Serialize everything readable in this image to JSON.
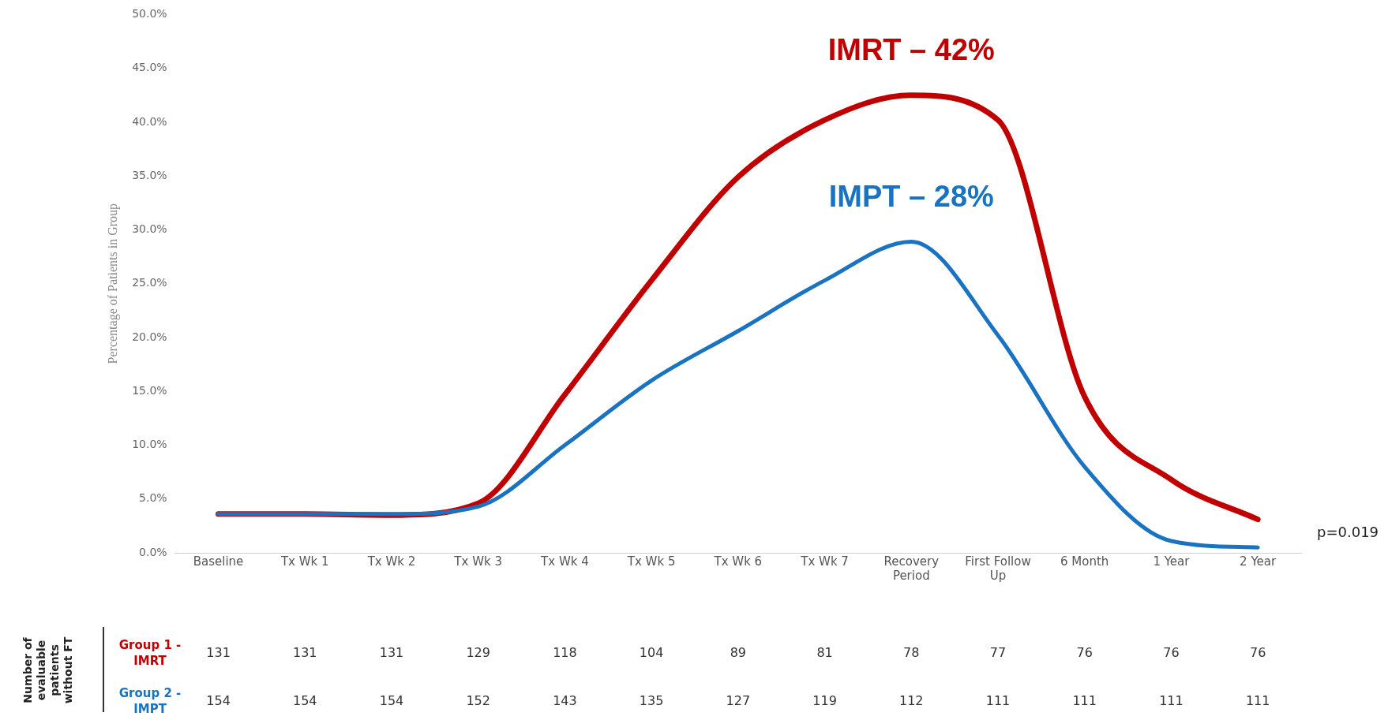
{
  "chart_data": {
    "type": "line",
    "ylabel": "Percentage of Patients in Group",
    "categories": [
      "Baseline",
      "Tx Wk 1",
      "Tx Wk 2",
      "Tx Wk 3",
      "Tx Wk 4",
      "Tx Wk 5",
      "Tx Wk 6",
      "Tx Wk 7",
      "Recovery Period",
      "First Follow Up",
      "6 Month",
      "1 Year",
      "2 Year"
    ],
    "series": [
      {
        "color": "#c00000",
        "values": [
          3.6,
          3.6,
          3.5,
          4.6,
          14.7,
          25.3,
          34.9,
          40.2,
          42.5,
          40.2,
          14.5,
          6.8,
          3.1
        ]
      },
      {
        "color": "#1a73c0",
        "values": [
          3.6,
          3.6,
          3.6,
          4.3,
          10.0,
          16.0,
          20.6,
          25.3,
          28.9,
          20.2,
          8.0,
          1.1,
          0.5
        ]
      }
    ],
    "ylim": [
      0,
      50
    ],
    "yticks": [
      {
        "value": 0,
        "label": "0.0%"
      },
      {
        "value": 5,
        "label": "5.0%"
      },
      {
        "value": 10,
        "label": "10.0%"
      },
      {
        "value": 15,
        "label": "15.0%"
      },
      {
        "value": 20,
        "label": "20.0%"
      },
      {
        "value": 25,
        "label": "25.0%"
      },
      {
        "value": 30,
        "label": "30.0%"
      },
      {
        "value": 35,
        "label": "35.0%"
      },
      {
        "value": 40,
        "label": "40.0%"
      },
      {
        "value": 45,
        "label": "45.0%"
      },
      {
        "value": 50,
        "label": "50.0%"
      }
    ],
    "grid": false,
    "legend": false,
    "marker": "none",
    "line_style": "solid",
    "annotations": [
      "Number of evaluable patients without FT",
      "Group 1 - IMRT",
      "131",
      "131",
      "131",
      "129",
      "118",
      "104",
      "89",
      "81",
      "78",
      "77",
      "76",
      "76",
      "76",
      "Group 2 - IMPT",
      "154",
      "154",
      "154",
      "152",
      "143",
      "135",
      "127",
      "119",
      "112",
      "111",
      "111",
      "111",
      "111",
      "p=0.019",
      "IMRT – 42%",
      "IMPT – 28%"
    ]
  }
}
